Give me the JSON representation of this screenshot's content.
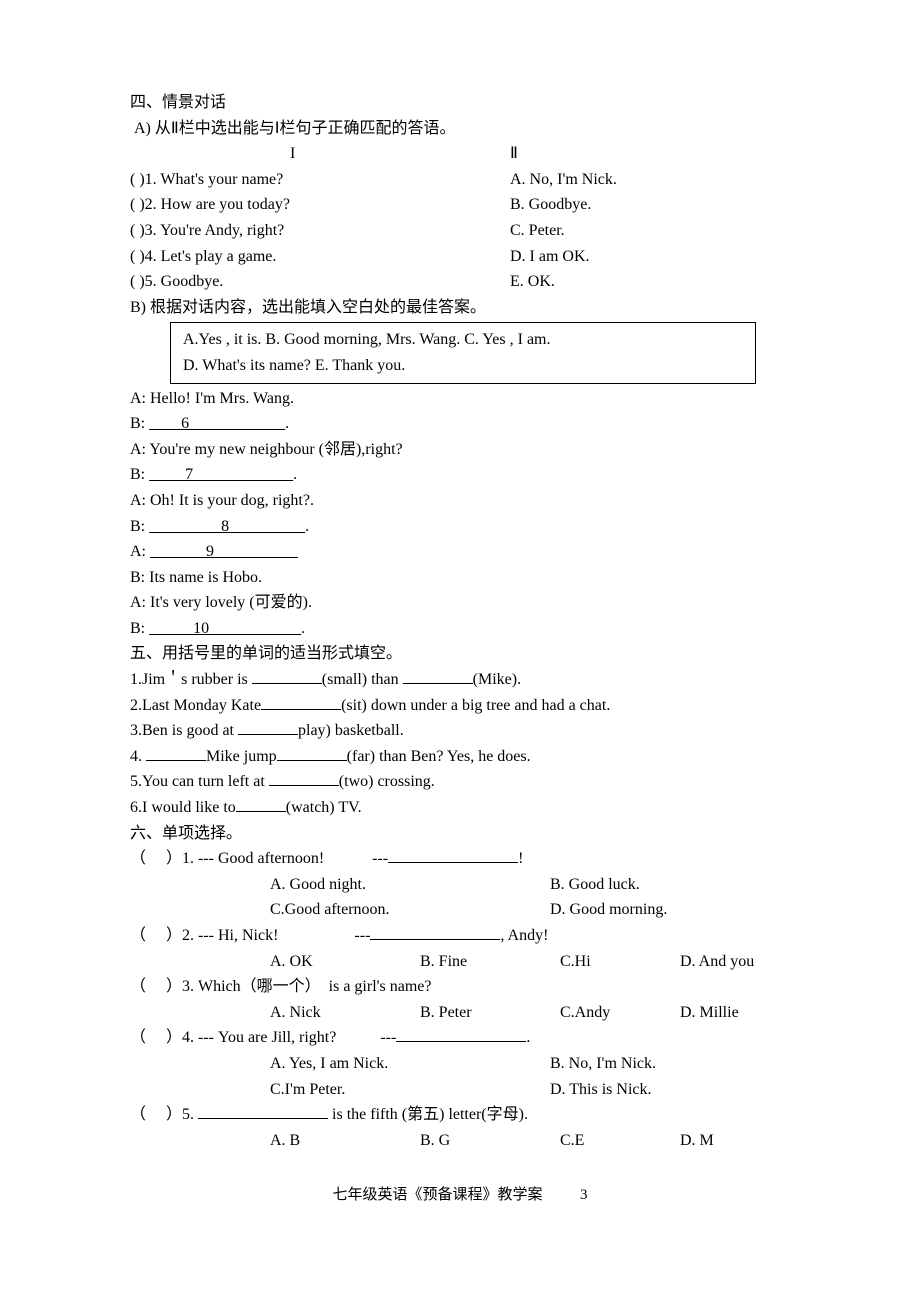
{
  "section4": {
    "title": "四、情景对话",
    "partA": {
      "instruction": " A) 从Ⅱ栏中选出能与Ⅰ栏句子正确匹配的答语。",
      "header_left": "I",
      "header_right": "Ⅱ",
      "rows": [
        {
          "num": "(      )1.",
          "left": "What's your name?",
          "right": "A. No, I'm Nick."
        },
        {
          "num": "(      )2.",
          "left": "How are you today?",
          "right": "B. Goodbye."
        },
        {
          "num": "(      )3.",
          "left": "You're Andy, right?",
          "right": "C. Peter."
        },
        {
          "num": "(      )4.",
          "left": "Let's play a game.",
          "right": " D. I am OK."
        },
        {
          "num": "(      )5.",
          "left": "Goodbye.",
          "right": "E. OK."
        }
      ]
    },
    "partB": {
      "instruction": "B) 根据对话内容，选出能填入空白处的最佳答案。",
      "box_line1": "A.Yes , it is.    B. Good morning, Mrs. Wang.         C. Yes , I am.",
      "box_line2": "D. What's its name?          E. Thank you.",
      "dialogue": [
        "A: Hello! I'm Mrs. Wang.",
        {
          "prefix": "B: ",
          "blank_left": "        ",
          "num": "6",
          "blank_right": "                        ",
          "suffix": "."
        },
        "A: You're my new neighbour (邻居),right?",
        {
          "prefix": "B: ",
          "blank_left": "         ",
          "num": "7",
          "blank_right": "                         ",
          "suffix": "."
        },
        "A: Oh! It is your dog, right?.",
        {
          "prefix": "B: ",
          "blank_left": "                  ",
          "num": "8",
          "blank_right": "                   ",
          "suffix": "."
        },
        {
          "prefix": "A: ",
          "blank_left": "              ",
          "num": "9",
          "blank_right": "                     ",
          "suffix": ""
        },
        "B: Its name is Hobo.",
        "A: It's very lovely (可爱的).",
        {
          "prefix": "B: ",
          "blank_left": "           ",
          "num": "10",
          "blank_right": "                       ",
          "suffix": "."
        }
      ]
    }
  },
  "section5": {
    "title": "五、用括号里的单词的适当形式填空。",
    "items": [
      {
        "n": "1.",
        "pre": "Jim＇s rubber is ",
        "b1": 70,
        "mid1": "(small) than ",
        "b2": 70,
        "post": "(Mike)."
      },
      {
        "n": "2.",
        "pre": "Last Monday Kate",
        "b1": 80,
        "post": "(sit) down under a big tree and had a chat."
      },
      {
        "n": "3.",
        "pre": "Ben is good at ",
        "b1": 60,
        "post": "play) basketball."
      },
      {
        "n": "4.",
        "pre": " ",
        "b1": 60,
        "mid1": "Mike jump",
        "b2": 70,
        "post": "(far) than Ben? Yes, he does."
      },
      {
        "n": "5.",
        "pre": "You can turn left at ",
        "b1": 70,
        "post": "(two) crossing."
      },
      {
        "n": "6.",
        "pre": "I would like to",
        "b1": 50,
        "post": "(watch) TV."
      }
    ]
  },
  "section6": {
    "title": "六、单项选择。",
    "q1": {
      "stem_pre": "（     ）1. --- Good afternoon!            ---",
      "stem_post": "!",
      "a": "A. Good night.",
      "b": "B. Good luck.",
      "c": "C.Good afternoon.",
      "d": "D. Good morning."
    },
    "q2": {
      "stem_pre": "（     ）2. --- Hi, Nick!                   ---",
      "stem_post": ", Andy!",
      "a": "A. OK",
      "b": "B. Fine",
      "c": "C.Hi",
      "d": "D. And you"
    },
    "q3": {
      "stem": "（     ）3. Which（哪一个）  is a girl's name?",
      "a": "A. Nick",
      "b": "B. Peter",
      "c": "C.Andy",
      "d": "D. Millie"
    },
    "q4": {
      "stem_pre": "（     ）4. --- You are Jill, right?           ---",
      "stem_post": ".",
      "a": "A.   Yes, I am Nick.",
      "b": "B. No, I'm Nick.",
      "c": "C.I'm Peter.",
      "d": "D. This is Nick."
    },
    "q5": {
      "stem_pre": "（     ）5. ",
      "stem_post": " is the fifth (第五) letter(字母).",
      "a": "A. B",
      "b": "B. G",
      "c": "C.E",
      "d": "D. M"
    }
  },
  "footer": {
    "text": "七年级英语《预备课程》教学案",
    "page": "3"
  }
}
